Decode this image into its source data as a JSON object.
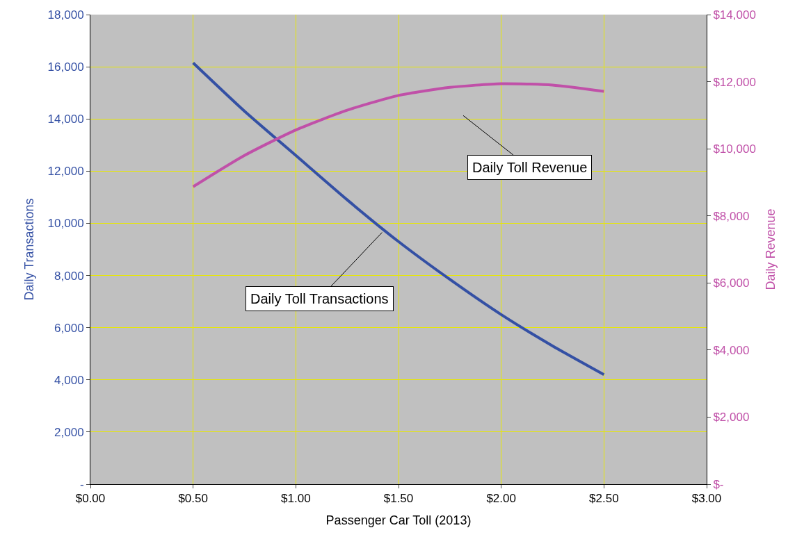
{
  "chart_data": {
    "type": "line",
    "xlabel": "Passenger Car Toll (2013)",
    "ylabel": "Daily Transactions",
    "y2label": "Daily Revenue",
    "x": [
      0.5,
      0.75,
      1.0,
      1.25,
      1.5,
      1.75,
      2.0,
      2.25,
      2.5
    ],
    "series": [
      {
        "color": "#3450a4",
        "values": [
          16150,
          14300,
          12600,
          10900,
          9300,
          7850,
          6500,
          5300,
          4200
        ]
      },
      {
        "color": "#c050a8",
        "axis": "y2",
        "values": [
          8870,
          9800,
          10560,
          11150,
          11590,
          11830,
          11940,
          11900,
          11710
        ]
      }
    ],
    "annotations": [
      "Daily Toll Revenue",
      {
        "text": "Daily Toll Transactions",
        "x": 1.42,
        "y": 9650
      }
    ],
    "xlim": [
      0,
      3
    ],
    "xticks": [
      {
        "value": 0,
        "label": "$0.00"
      },
      {
        "value": 0.5,
        "label": "$0.50"
      },
      {
        "value": 1,
        "label": "$1.00"
      },
      {
        "value": 1.5,
        "label": "$1.50"
      },
      {
        "value": 2,
        "label": "$2.00"
      },
      {
        "value": 2.5,
        "label": "$2.50"
      },
      {
        "value": 3,
        "label": "$3.00"
      }
    ],
    "ylim": [
      0,
      18000
    ],
    "yticks": [
      {
        "value": 0,
        "label": "-"
      },
      {
        "value": 2000,
        "label": "2,000"
      },
      {
        "value": 4000,
        "label": "4,000"
      },
      {
        "value": 6000,
        "label": "6,000"
      },
      {
        "value": 8000,
        "label": "8,000"
      },
      {
        "value": 10000,
        "label": "10,000"
      },
      {
        "value": 12000,
        "label": "12,000"
      },
      {
        "value": 14000,
        "label": "14,000"
      },
      {
        "value": 16000,
        "label": "16,000"
      },
      {
        "value": 18000,
        "label": "18,000"
      }
    ],
    "y2lim": [
      0,
      14000
    ],
    "y2ticks": [
      {
        "value": 0,
        "label": "$-"
      },
      {
        "value": 2000,
        "label": "$2,000"
      },
      {
        "value": 4000,
        "label": "$4,000"
      },
      {
        "value": 6000,
        "label": "$6,000"
      },
      {
        "value": 8000,
        "label": "$8,000"
      },
      {
        "value": 10000,
        "label": "$10,000"
      },
      {
        "value": 12000,
        "label": "$12,000"
      },
      {
        "value": 14000,
        "label": "$14,000"
      }
    ],
    "grid": true,
    "legend": false,
    "marker": "none",
    "line_style": "solid"
  }
}
